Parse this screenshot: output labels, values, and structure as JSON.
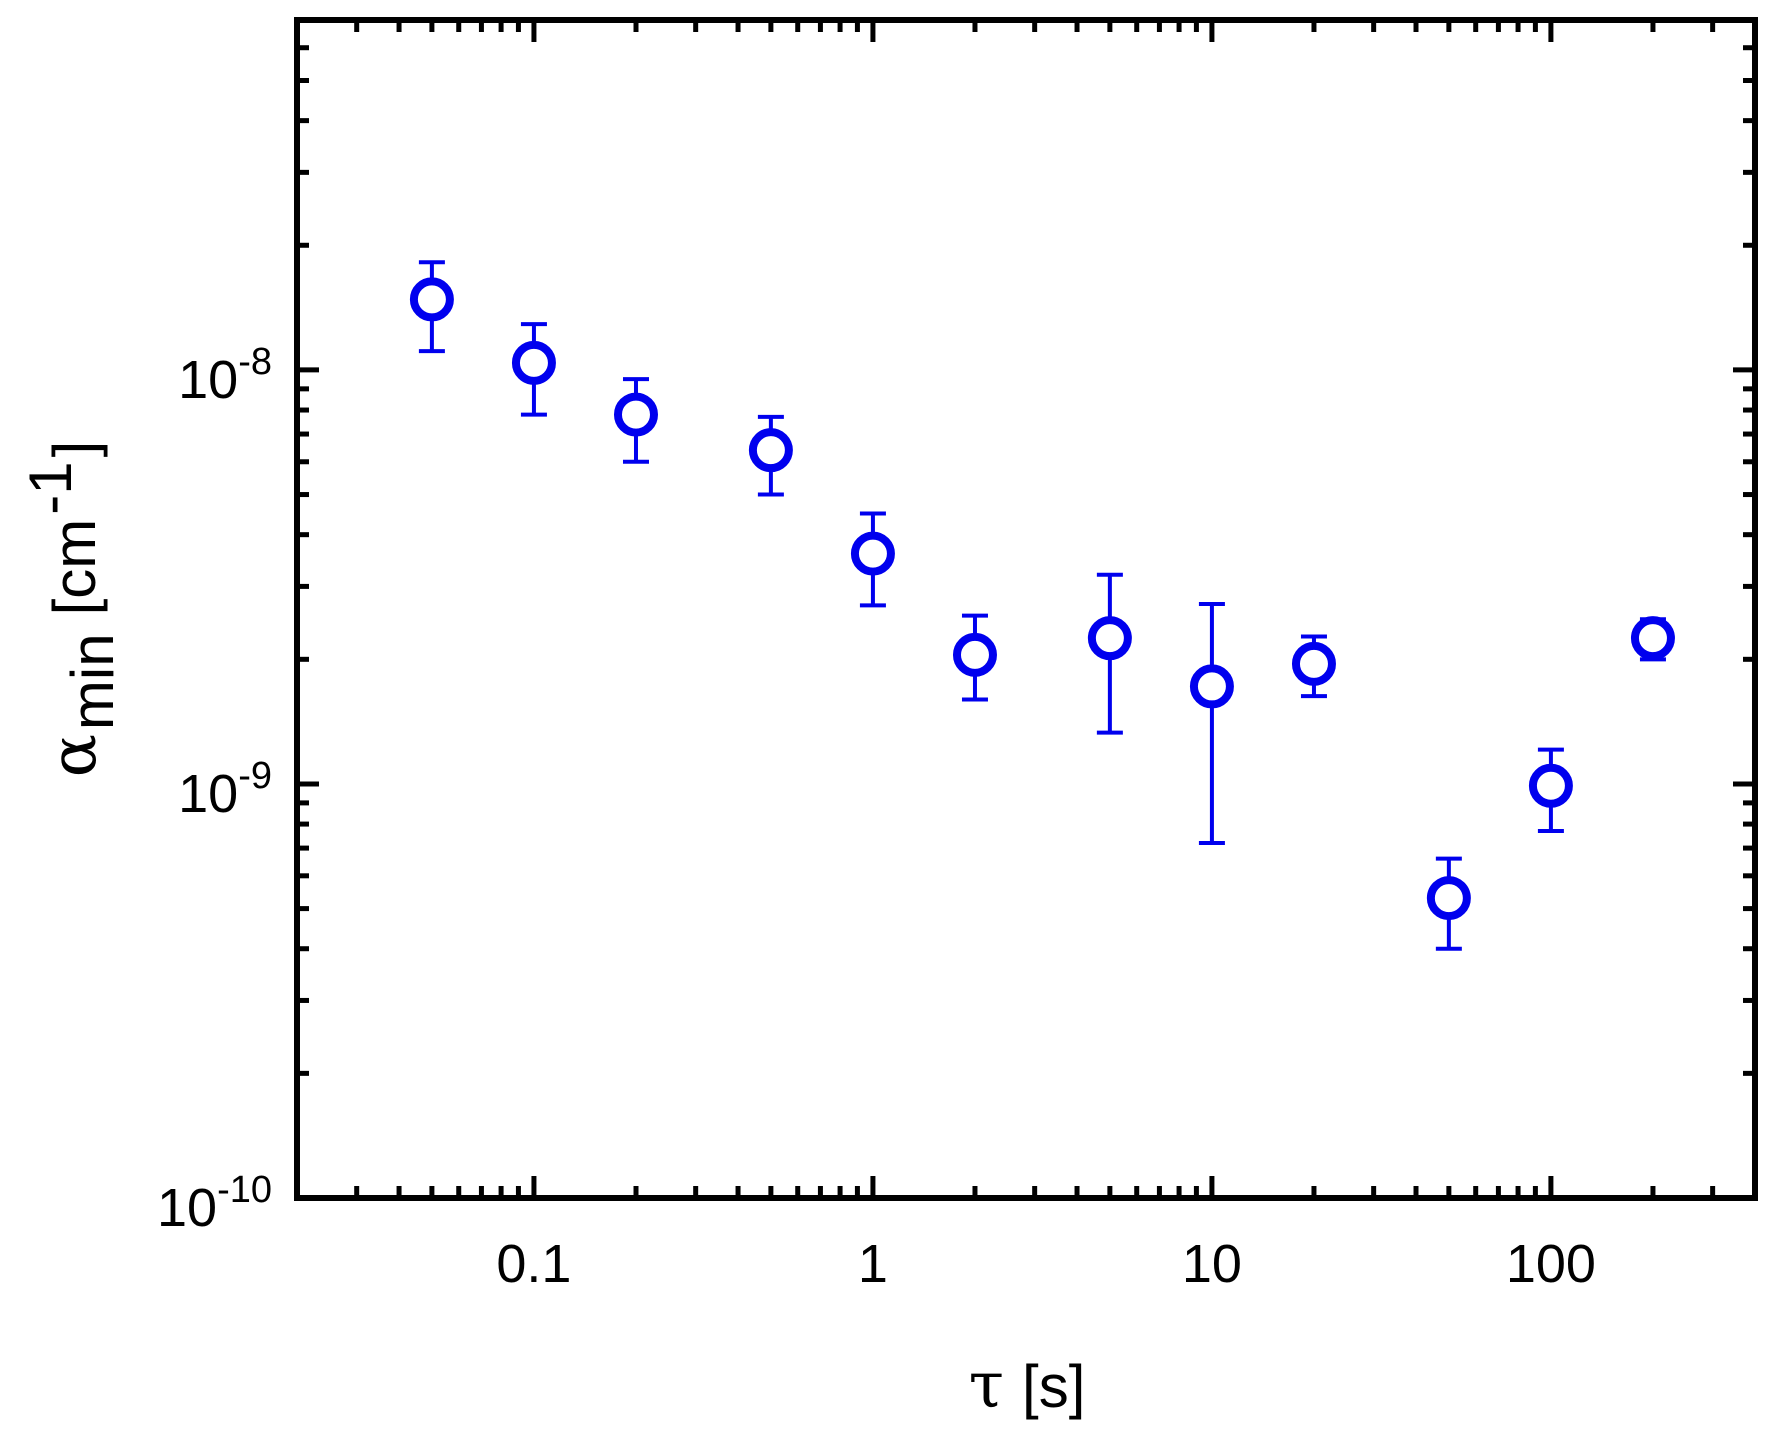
{
  "chart_data": {
    "type": "scatter",
    "xscale": "log",
    "yscale": "log",
    "xlim": [
      0.02,
      400
    ],
    "ylim": [
      1e-10,
      7e-08
    ],
    "grid": false,
    "legend": "none",
    "x_ticks": [
      {
        "value": 0.1,
        "label": "0.1"
      },
      {
        "value": 1,
        "label": "1"
      },
      {
        "value": 10,
        "label": "10"
      },
      {
        "value": 100,
        "label": "100"
      }
    ],
    "y_ticks": [
      {
        "value": 1e-10,
        "base": "10",
        "exp": "-10"
      },
      {
        "value": 1e-09,
        "base": "10",
        "exp": "-9"
      },
      {
        "value": 1e-08,
        "base": "10",
        "exp": "-8"
      }
    ],
    "xlabel": {
      "symbol": "τ",
      "unit": "[s]"
    },
    "ylabel": {
      "symbol": "α",
      "subscript": "min",
      "unit_open": "[cm",
      "unit_exp": "-1",
      "unit_close": "]"
    },
    "marker": {
      "shape": "open-circle",
      "color": "#0000ee"
    },
    "points": [
      {
        "x": 0.05,
        "y": 1.48e-08,
        "y_low": 1.11e-08,
        "y_high": 1.82e-08
      },
      {
        "x": 0.1,
        "y": 1.04e-08,
        "y_low": 7.8e-09,
        "y_high": 1.29e-08
      },
      {
        "x": 0.2,
        "y": 7.8e-09,
        "y_low": 6e-09,
        "y_high": 9.5e-09
      },
      {
        "x": 0.5,
        "y": 6.4e-09,
        "y_low": 5e-09,
        "y_high": 7.7e-09
      },
      {
        "x": 1,
        "y": 3.6e-09,
        "y_low": 2.7e-09,
        "y_high": 4.5e-09
      },
      {
        "x": 2,
        "y": 2.05e-09,
        "y_low": 1.6e-09,
        "y_high": 2.55e-09
      },
      {
        "x": 5,
        "y": 2.25e-09,
        "y_low": 1.33e-09,
        "y_high": 3.2e-09
      },
      {
        "x": 10,
        "y": 1.72e-09,
        "y_low": 7.2e-10,
        "y_high": 2.72e-09
      },
      {
        "x": 20,
        "y": 1.95e-09,
        "y_low": 1.63e-09,
        "y_high": 2.27e-09
      },
      {
        "x": 50,
        "y": 5.3e-10,
        "y_low": 4e-10,
        "y_high": 6.6e-10
      },
      {
        "x": 100,
        "y": 9.9e-10,
        "y_low": 7.7e-10,
        "y_high": 1.21e-09
      },
      {
        "x": 200,
        "y": 2.25e-09,
        "y_low": 2e-09,
        "y_high": 2.5e-09
      }
    ]
  }
}
